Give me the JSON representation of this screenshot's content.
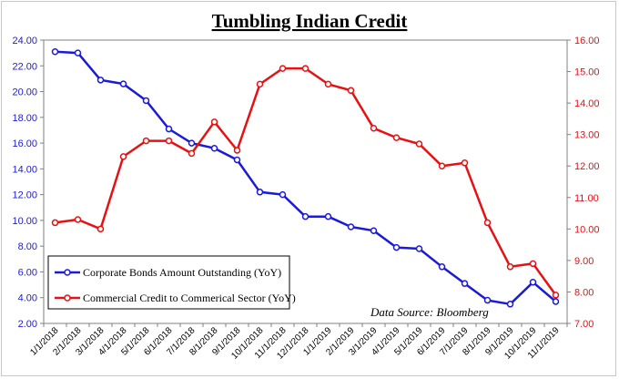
{
  "chart_data": {
    "type": "line",
    "title": "Tumbling Indian Credit",
    "annotation": "Data Source: Bloomberg",
    "categories": [
      "1/1/2018",
      "2/1/2018",
      "3/1/2018",
      "4/1/2018",
      "5/1/2018",
      "6/1/2018",
      "7/1/2018",
      "8/1/2018",
      "9/1/2018",
      "10/1/2018",
      "11/1/2018",
      "12/1/2018",
      "1/1/2019",
      "2/1/2019",
      "3/1/2019",
      "4/1/2019",
      "5/1/2019",
      "6/1/2019",
      "7/1/2019",
      "8/1/2019",
      "9/1/2019",
      "10/1/2019",
      "11/1/2019"
    ],
    "y_left": {
      "ylim": [
        2,
        24
      ],
      "ticks": [
        "24.00",
        "22.00",
        "20.00",
        "18.00",
        "16.00",
        "14.00",
        "12.00",
        "10.00",
        "8.00",
        "6.00",
        "4.00",
        "2.00"
      ],
      "color": "#1a1adb"
    },
    "y_right": {
      "ylim": [
        7,
        16
      ],
      "ticks": [
        "16.00",
        "15.00",
        "14.00",
        "13.00",
        "12.00",
        "11.00",
        "10.00",
        "9.00",
        "8.00",
        "7.00"
      ],
      "color": "#e81010"
    },
    "series": [
      {
        "name": "Corporate Bonds Amount Outstanding (YoY)",
        "axis": "left",
        "color": "#1a1adb",
        "values": [
          23.1,
          23.0,
          20.9,
          20.6,
          19.3,
          17.1,
          16.0,
          15.6,
          14.7,
          12.2,
          12.0,
          10.3,
          10.3,
          9.5,
          9.2,
          7.9,
          7.8,
          6.4,
          5.1,
          3.8,
          3.5,
          5.2,
          3.7
        ]
      },
      {
        "name": "Commercial Credit to Commerical Sector (YoY)",
        "axis": "right",
        "color": "#e81010",
        "values": [
          10.2,
          10.3,
          10.0,
          12.3,
          12.8,
          12.8,
          12.4,
          13.4,
          12.5,
          14.6,
          15.1,
          15.1,
          14.6,
          14.4,
          13.2,
          12.9,
          12.7,
          12.0,
          12.1,
          10.2,
          8.8,
          8.9,
          7.9
        ]
      }
    ],
    "legend_position": "lower-left",
    "grid": false
  }
}
